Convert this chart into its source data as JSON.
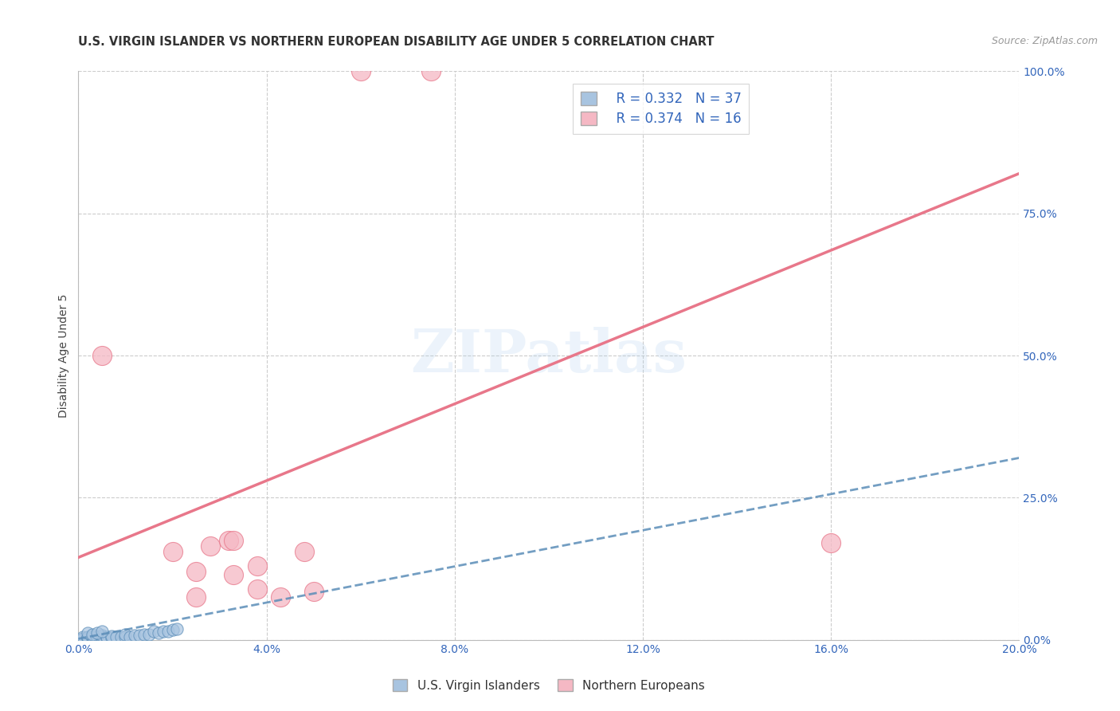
{
  "title": "U.S. VIRGIN ISLANDER VS NORTHERN EUROPEAN DISABILITY AGE UNDER 5 CORRELATION CHART",
  "source": "Source: ZipAtlas.com",
  "ylabel": "Disability Age Under 5",
  "xlim": [
    0.0,
    0.2
  ],
  "ylim": [
    0.0,
    1.0
  ],
  "xticks": [
    0.0,
    0.04,
    0.08,
    0.12,
    0.16,
    0.2
  ],
  "yticks": [
    0.0,
    0.25,
    0.5,
    0.75,
    1.0
  ],
  "xtick_labels": [
    "0.0%",
    "4.0%",
    "8.0%",
    "12.0%",
    "16.0%",
    "20.0%"
  ],
  "ytick_labels": [
    "0.0%",
    "25.0%",
    "50.0%",
    "75.0%",
    "100.0%"
  ],
  "watermark": "ZIPatlas",
  "legend_R1": "R = 0.332",
  "legend_N1": "N = 37",
  "legend_R2": "R = 0.374",
  "legend_N2": "N = 16",
  "legend_label1": "U.S. Virgin Islanders",
  "legend_label2": "Northern Europeans",
  "color_blue": "#A8C4E0",
  "color_pink": "#F5B8C4",
  "color_blue_dark": "#5B8DB8",
  "color_pink_dark": "#E8778A",
  "blue_scatter_x": [
    0.001,
    0.001,
    0.001,
    0.002,
    0.002,
    0.002,
    0.003,
    0.003,
    0.003,
    0.004,
    0.004,
    0.005,
    0.005,
    0.005,
    0.006,
    0.006,
    0.007,
    0.007,
    0.008,
    0.009,
    0.01,
    0.01,
    0.011,
    0.012,
    0.013,
    0.014,
    0.015,
    0.016,
    0.017,
    0.018,
    0.019,
    0.02,
    0.021,
    0.002,
    0.003,
    0.004,
    0.005
  ],
  "blue_scatter_y": [
    0.002,
    0.003,
    0.005,
    0.002,
    0.004,
    0.005,
    0.003,
    0.005,
    0.007,
    0.003,
    0.005,
    0.003,
    0.005,
    0.008,
    0.004,
    0.006,
    0.004,
    0.007,
    0.005,
    0.005,
    0.005,
    0.01,
    0.006,
    0.008,
    0.008,
    0.01,
    0.01,
    0.015,
    0.012,
    0.015,
    0.015,
    0.018,
    0.02,
    0.012,
    0.01,
    0.012,
    0.015
  ],
  "pink_scatter_x": [
    0.06,
    0.075,
    0.02,
    0.025,
    0.028,
    0.033,
    0.038,
    0.043,
    0.048,
    0.025,
    0.032,
    0.05,
    0.16,
    0.005,
    0.033,
    0.038
  ],
  "pink_scatter_y": [
    1.0,
    1.0,
    0.155,
    0.12,
    0.165,
    0.115,
    0.13,
    0.075,
    0.155,
    0.075,
    0.175,
    0.085,
    0.17,
    0.5,
    0.175,
    0.09
  ],
  "blue_trendline_x": [
    0.0,
    0.2
  ],
  "blue_trendline_y": [
    0.002,
    0.32
  ],
  "pink_trendline_x": [
    0.0,
    0.2
  ],
  "pink_trendline_y": [
    0.145,
    0.82
  ],
  "background_color": "#FFFFFF",
  "grid_color": "#CCCCCC",
  "title_fontsize": 10.5,
  "axis_label_fontsize": 10,
  "tick_fontsize": 10,
  "legend_fontsize": 12
}
